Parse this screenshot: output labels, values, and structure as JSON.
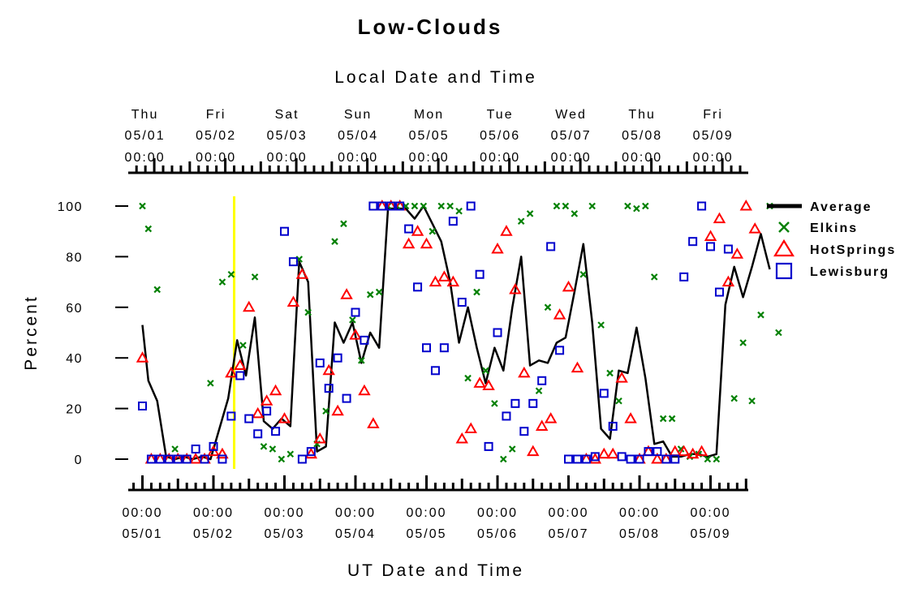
{
  "chart_data": {
    "type": "line",
    "title": "Low-Clouds",
    "xlabel_top": "Local Date and Time",
    "xlabel_bottom": "UT Date and Time",
    "ylabel": "Percent",
    "ylim": [
      0,
      100
    ],
    "yticks": [
      0,
      20,
      40,
      60,
      80,
      100
    ],
    "x_unit": "hours since 05/01 00:00 UT",
    "xlim": [
      -1,
      207
    ],
    "top_axis_labels": [
      {
        "day": "Thu",
        "date": "05/01",
        "time": "00:00"
      },
      {
        "day": "Fri",
        "date": "05/02",
        "time": "00:00"
      },
      {
        "day": "Sat",
        "date": "05/03",
        "time": "00:00"
      },
      {
        "day": "Sun",
        "date": "05/04",
        "time": "00:00"
      },
      {
        "day": "Mon",
        "date": "05/05",
        "time": "00:00"
      },
      {
        "day": "Tue",
        "date": "05/06",
        "time": "00:00"
      },
      {
        "day": "Wed",
        "date": "05/07",
        "time": "00:00"
      },
      {
        "day": "Thu",
        "date": "05/08",
        "time": "00:00"
      },
      {
        "day": "Fri",
        "date": "05/09",
        "time": "00:00"
      }
    ],
    "bottom_axis_labels": [
      {
        "time": "00:00",
        "date": "05/01"
      },
      {
        "time": "00:00",
        "date": "05/02"
      },
      {
        "time": "00:00",
        "date": "05/03"
      },
      {
        "time": "00:00",
        "date": "05/04"
      },
      {
        "time": "00:00",
        "date": "05/05"
      },
      {
        "time": "00:00",
        "date": "05/06"
      },
      {
        "time": "00:00",
        "date": "05/07"
      },
      {
        "time": "00:00",
        "date": "05/08"
      },
      {
        "time": "00:00",
        "date": "05/09"
      }
    ],
    "top_axis_offset_hours": 4,
    "marker_line_x": 31,
    "marker_line_color": "#ffff00",
    "legend": [
      "Average",
      "Elkins",
      "HotSprings",
      "Lewisburg"
    ],
    "legend_position": "right",
    "series": [
      {
        "name": "Average",
        "style": "line",
        "color": "#000000",
        "points": [
          [
            0,
            53
          ],
          [
            2,
            31
          ],
          [
            5,
            23
          ],
          [
            8,
            1
          ],
          [
            11,
            0
          ],
          [
            14,
            1
          ],
          [
            17,
            0
          ],
          [
            20,
            1
          ],
          [
            23,
            0
          ],
          [
            26,
            12
          ],
          [
            29,
            24
          ],
          [
            32,
            47
          ],
          [
            35,
            33
          ],
          [
            38,
            56
          ],
          [
            41,
            15
          ],
          [
            44,
            12
          ],
          [
            47,
            16
          ],
          [
            50,
            13
          ],
          [
            53,
            78
          ],
          [
            56,
            70
          ],
          [
            59,
            3
          ],
          [
            62,
            5
          ],
          [
            65,
            54
          ],
          [
            68,
            46
          ],
          [
            71,
            54
          ],
          [
            74,
            38
          ],
          [
            77,
            50
          ],
          [
            80,
            44
          ],
          [
            83,
            99
          ],
          [
            86,
            99
          ],
          [
            89,
            99
          ],
          [
            92,
            95
          ],
          [
            95,
            100
          ],
          [
            98,
            93
          ],
          [
            101,
            86
          ],
          [
            104,
            70
          ],
          [
            107,
            46
          ],
          [
            110,
            60
          ],
          [
            113,
            44
          ],
          [
            116,
            30
          ],
          [
            119,
            44
          ],
          [
            122,
            35
          ],
          [
            125,
            60
          ],
          [
            128,
            80
          ],
          [
            131,
            37
          ],
          [
            134,
            39
          ],
          [
            137,
            38
          ],
          [
            140,
            46
          ],
          [
            143,
            48
          ],
          [
            146,
            66
          ],
          [
            149,
            85
          ],
          [
            152,
            54
          ],
          [
            155,
            12
          ],
          [
            158,
            8
          ],
          [
            161,
            35
          ],
          [
            164,
            34
          ],
          [
            167,
            52
          ],
          [
            170,
            32
          ],
          [
            173,
            6
          ],
          [
            176,
            7
          ],
          [
            179,
            1
          ],
          [
            182,
            1
          ],
          [
            185,
            2
          ],
          [
            188,
            2
          ],
          [
            191,
            1
          ],
          [
            194,
            2
          ],
          [
            197,
            61
          ],
          [
            200,
            76
          ],
          [
            203,
            64
          ],
          [
            206,
            76
          ],
          [
            209,
            89
          ],
          [
            212,
            75
          ]
        ]
      },
      {
        "name": "Elkins",
        "style": "markers",
        "marker": "x",
        "color": "#008000",
        "points": [
          [
            0,
            100
          ],
          [
            2,
            91
          ],
          [
            5,
            67
          ],
          [
            11,
            4
          ],
          [
            23,
            30
          ],
          [
            27,
            70
          ],
          [
            30,
            73
          ],
          [
            34,
            45
          ],
          [
            38,
            72
          ],
          [
            41,
            5
          ],
          [
            44,
            4
          ],
          [
            47,
            0
          ],
          [
            50,
            2
          ],
          [
            53,
            79
          ],
          [
            56,
            58
          ],
          [
            59,
            6
          ],
          [
            62,
            19
          ],
          [
            65,
            86
          ],
          [
            68,
            93
          ],
          [
            71,
            55
          ],
          [
            74,
            39
          ],
          [
            77,
            65
          ],
          [
            80,
            66
          ],
          [
            83,
            100
          ],
          [
            86,
            100
          ],
          [
            89,
            100
          ],
          [
            92,
            100
          ],
          [
            95,
            100
          ],
          [
            98,
            90
          ],
          [
            101,
            100
          ],
          [
            104,
            100
          ],
          [
            107,
            98
          ],
          [
            110,
            32
          ],
          [
            113,
            66
          ],
          [
            116,
            35
          ],
          [
            119,
            22
          ],
          [
            122,
            0
          ],
          [
            125,
            4
          ],
          [
            128,
            94
          ],
          [
            131,
            97
          ],
          [
            134,
            27
          ],
          [
            137,
            60
          ],
          [
            140,
            100
          ],
          [
            143,
            100
          ],
          [
            146,
            97
          ],
          [
            149,
            73
          ],
          [
            152,
            100
          ],
          [
            155,
            53
          ],
          [
            158,
            34
          ],
          [
            161,
            23
          ],
          [
            164,
            100
          ],
          [
            167,
            99
          ],
          [
            170,
            100
          ],
          [
            173,
            72
          ],
          [
            176,
            16
          ],
          [
            179,
            16
          ],
          [
            182,
            4
          ],
          [
            185,
            1
          ],
          [
            188,
            2
          ],
          [
            191,
            0
          ],
          [
            194,
            0
          ],
          [
            200,
            24
          ],
          [
            203,
            46
          ],
          [
            206,
            23
          ],
          [
            209,
            57
          ],
          [
            212,
            100
          ],
          [
            215,
            50
          ]
        ]
      },
      {
        "name": "HotSprings",
        "style": "markers",
        "marker": "triangle",
        "color": "#ff0000",
        "points": [
          [
            0,
            40
          ],
          [
            3,
            0
          ],
          [
            6,
            0
          ],
          [
            9,
            0
          ],
          [
            12,
            0
          ],
          [
            15,
            0
          ],
          [
            18,
            0
          ],
          [
            21,
            0
          ],
          [
            24,
            3
          ],
          [
            27,
            2
          ],
          [
            30,
            34
          ],
          [
            33,
            37
          ],
          [
            36,
            60
          ],
          [
            39,
            18
          ],
          [
            42,
            23
          ],
          [
            45,
            27
          ],
          [
            48,
            16
          ],
          [
            51,
            62
          ],
          [
            54,
            73
          ],
          [
            57,
            2
          ],
          [
            60,
            8
          ],
          [
            63,
            35
          ],
          [
            66,
            19
          ],
          [
            69,
            65
          ],
          [
            72,
            49
          ],
          [
            75,
            27
          ],
          [
            78,
            14
          ],
          [
            81,
            100
          ],
          [
            84,
            100
          ],
          [
            87,
            100
          ],
          [
            90,
            85
          ],
          [
            93,
            90
          ],
          [
            96,
            85
          ],
          [
            99,
            70
          ],
          [
            102,
            72
          ],
          [
            105,
            70
          ],
          [
            108,
            8
          ],
          [
            111,
            12
          ],
          [
            114,
            30
          ],
          [
            117,
            29
          ],
          [
            120,
            83
          ],
          [
            123,
            90
          ],
          [
            126,
            67
          ],
          [
            129,
            34
          ],
          [
            132,
            3
          ],
          [
            135,
            13
          ],
          [
            138,
            16
          ],
          [
            141,
            57
          ],
          [
            144,
            68
          ],
          [
            147,
            36
          ],
          [
            150,
            0
          ],
          [
            153,
            0
          ],
          [
            156,
            2
          ],
          [
            159,
            2
          ],
          [
            162,
            32
          ],
          [
            165,
            16
          ],
          [
            168,
            0
          ],
          [
            171,
            3
          ],
          [
            174,
            0
          ],
          [
            177,
            0
          ],
          [
            180,
            3
          ],
          [
            183,
            3
          ],
          [
            186,
            2
          ],
          [
            189,
            3
          ],
          [
            192,
            88
          ],
          [
            195,
            95
          ],
          [
            198,
            70
          ],
          [
            201,
            81
          ],
          [
            204,
            100
          ],
          [
            207,
            91
          ]
        ]
      },
      {
        "name": "Lewisburg",
        "style": "markers",
        "marker": "square",
        "color": "#0000cc",
        "points": [
          [
            0,
            21
          ],
          [
            3,
            0
          ],
          [
            6,
            0
          ],
          [
            9,
            0
          ],
          [
            12,
            0
          ],
          [
            15,
            0
          ],
          [
            18,
            4
          ],
          [
            21,
            0
          ],
          [
            24,
            5
          ],
          [
            27,
            0
          ],
          [
            30,
            17
          ],
          [
            33,
            33
          ],
          [
            36,
            16
          ],
          [
            39,
            10
          ],
          [
            42,
            19
          ],
          [
            45,
            11
          ],
          [
            48,
            90
          ],
          [
            51,
            78
          ],
          [
            54,
            0
          ],
          [
            57,
            3
          ],
          [
            60,
            38
          ],
          [
            63,
            28
          ],
          [
            66,
            40
          ],
          [
            69,
            24
          ],
          [
            72,
            58
          ],
          [
            75,
            47
          ],
          [
            78,
            100
          ],
          [
            81,
            100
          ],
          [
            84,
            100
          ],
          [
            87,
            100
          ],
          [
            90,
            91
          ],
          [
            93,
            68
          ],
          [
            96,
            44
          ],
          [
            99,
            35
          ],
          [
            102,
            44
          ],
          [
            105,
            94
          ],
          [
            108,
            62
          ],
          [
            111,
            100
          ],
          [
            114,
            73
          ],
          [
            117,
            5
          ],
          [
            120,
            50
          ],
          [
            123,
            17
          ],
          [
            126,
            22
          ],
          [
            129,
            11
          ],
          [
            132,
            22
          ],
          [
            135,
            31
          ],
          [
            138,
            84
          ],
          [
            141,
            43
          ],
          [
            144,
            0
          ],
          [
            147,
            0
          ],
          [
            150,
            0
          ],
          [
            153,
            1
          ],
          [
            156,
            26
          ],
          [
            159,
            13
          ],
          [
            162,
            1
          ],
          [
            165,
            0
          ],
          [
            168,
            0
          ],
          [
            171,
            3
          ],
          [
            174,
            3
          ],
          [
            177,
            0
          ],
          [
            180,
            0
          ],
          [
            183,
            72
          ],
          [
            186,
            86
          ],
          [
            189,
            100
          ],
          [
            192,
            84
          ],
          [
            195,
            66
          ],
          [
            198,
            83
          ]
        ]
      }
    ]
  }
}
